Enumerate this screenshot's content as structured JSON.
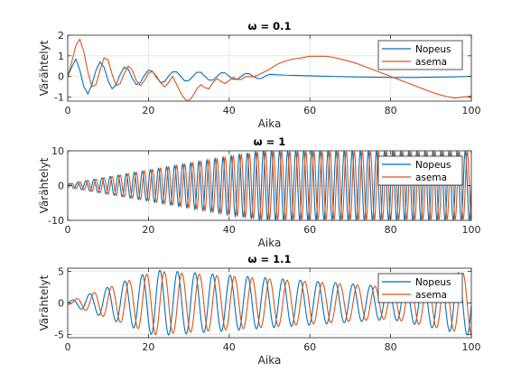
{
  "chart_data": [
    {
      "type": "line",
      "title": "ω = 0.1",
      "xlabel": "Aika",
      "ylabel": "Värähtelyt",
      "xlim": [
        0,
        100
      ],
      "ylim": [
        -1.2,
        2
      ],
      "xticks": [
        0,
        20,
        40,
        60,
        80,
        100
      ],
      "yticks": [
        -1,
        0,
        1,
        2
      ],
      "grid": true,
      "legend": "top-right",
      "series": [
        {
          "name": "Nopeus",
          "color": "#0072bd",
          "x": [
            0,
            1,
            2,
            3,
            4,
            5,
            6,
            7,
            8,
            9,
            10,
            11,
            12,
            13,
            14,
            15,
            16,
            17,
            18,
            19,
            20,
            21,
            22,
            23,
            24,
            25,
            26,
            27,
            28,
            29,
            30,
            31,
            32,
            33,
            34,
            35,
            36,
            37,
            38,
            39,
            40,
            41,
            42,
            43,
            44,
            45,
            46,
            47,
            48,
            49,
            50,
            52,
            54,
            56,
            58,
            60,
            62,
            64,
            66,
            68,
            70,
            72,
            74,
            76,
            78,
            80,
            82,
            84,
            86,
            88,
            90,
            92,
            94,
            96,
            98,
            100
          ],
          "y": [
            0,
            0.45,
            0.85,
            0.3,
            -0.5,
            -0.85,
            -0.4,
            0.3,
            0.7,
            0.45,
            -0.2,
            -0.6,
            -0.4,
            0.1,
            0.45,
            0.35,
            -0.1,
            -0.4,
            -0.3,
            0.05,
            0.3,
            0.25,
            -0.05,
            -0.3,
            -0.25,
            0.02,
            0.22,
            0.22,
            0,
            -0.22,
            -0.2,
            0,
            0.2,
            0.2,
            0,
            -0.18,
            -0.18,
            0,
            0.18,
            0.17,
            0,
            -0.14,
            -0.14,
            0,
            0.14,
            0.13,
            0,
            -0.1,
            -0.1,
            0.02,
            0.1,
            0.08,
            0.06,
            0.05,
            0.04,
            0.03,
            0.02,
            0.01,
            0,
            -0.01,
            -0.02,
            -0.03,
            -0.03,
            -0.04,
            -0.04,
            -0.05,
            -0.05,
            -0.05,
            -0.05,
            -0.04,
            -0.04,
            -0.03,
            -0.03,
            -0.02,
            -0.01,
            0
          ]
        },
        {
          "name": "asema",
          "color": "#d95319",
          "x": [
            0,
            1,
            2,
            3,
            4,
            5,
            6,
            7,
            8,
            9,
            10,
            11,
            12,
            13,
            14,
            15,
            16,
            17,
            18,
            19,
            20,
            21,
            22,
            23,
            24,
            25,
            26,
            27,
            28,
            29,
            30,
            31,
            32,
            33,
            34,
            35,
            36,
            37,
            38,
            39,
            40,
            41,
            42,
            43,
            44,
            45,
            46,
            47,
            48,
            50,
            52,
            54,
            56,
            58,
            60,
            62,
            64,
            66,
            68,
            70,
            72,
            74,
            76,
            78,
            80,
            82,
            84,
            86,
            88,
            90,
            92,
            94,
            96,
            98,
            100
          ],
          "y": [
            0,
            0.7,
            1.5,
            1.8,
            1.2,
            0.2,
            -0.5,
            -0.4,
            0.3,
            0.9,
            0.8,
            0.1,
            -0.45,
            -0.35,
            0.15,
            0.5,
            0.3,
            -0.2,
            -0.45,
            -0.2,
            0.15,
            0.25,
            0,
            -0.3,
            -0.5,
            -0.3,
            0,
            -0.4,
            -0.8,
            -1.1,
            -1.2,
            -0.95,
            -0.6,
            -0.4,
            -0.55,
            -0.6,
            -0.3,
            -0.1,
            -0.25,
            -0.35,
            -0.2,
            -0.05,
            -0.15,
            -0.15,
            -0.02,
            0,
            -0.02,
            0.05,
            0.15,
            0.35,
            0.6,
            0.75,
            0.85,
            0.9,
            0.98,
            0.98,
            0.98,
            0.92,
            0.82,
            0.72,
            0.6,
            0.45,
            0.3,
            0.15,
            0,
            -0.15,
            -0.3,
            -0.45,
            -0.6,
            -0.75,
            -0.88,
            -0.98,
            -1.05,
            -1.0,
            -0.95
          ]
        }
      ]
    },
    {
      "type": "line",
      "title": "ω = 1",
      "xlabel": "Aika",
      "ylabel": "Värähtelyt",
      "xlim": [
        0,
        100
      ],
      "ylim": [
        -10,
        10
      ],
      "xticks": [
        0,
        20,
        40,
        60,
        80,
        100
      ],
      "yticks": [
        -10,
        0,
        10
      ],
      "grid": true,
      "legend": "top-right",
      "series": [
        {
          "name": "Nopeus",
          "color": "#0072bd",
          "period": 2.0,
          "amplitude_end": 10
        },
        {
          "name": "asema",
          "color": "#d95319",
          "period": 2.0,
          "amplitude_end": 10
        }
      ]
    },
    {
      "type": "line",
      "title": "ω = 1.1",
      "xlabel": "Aika",
      "ylabel": "Värähtelyt",
      "xlim": [
        0,
        100
      ],
      "ylim": [
        -5.5,
        5.5
      ],
      "xticks": [
        0,
        20,
        40,
        60,
        80,
        100
      ],
      "yticks": [
        -5,
        0,
        5
      ],
      "grid": true,
      "legend": "top-right",
      "series": [
        {
          "name": "Nopeus",
          "color": "#0072bd",
          "period": 4.35,
          "amplitude_max": 5.2
        },
        {
          "name": "asema",
          "color": "#d95319",
          "period": 4.35,
          "amplitude_max": 5.0
        }
      ]
    }
  ]
}
